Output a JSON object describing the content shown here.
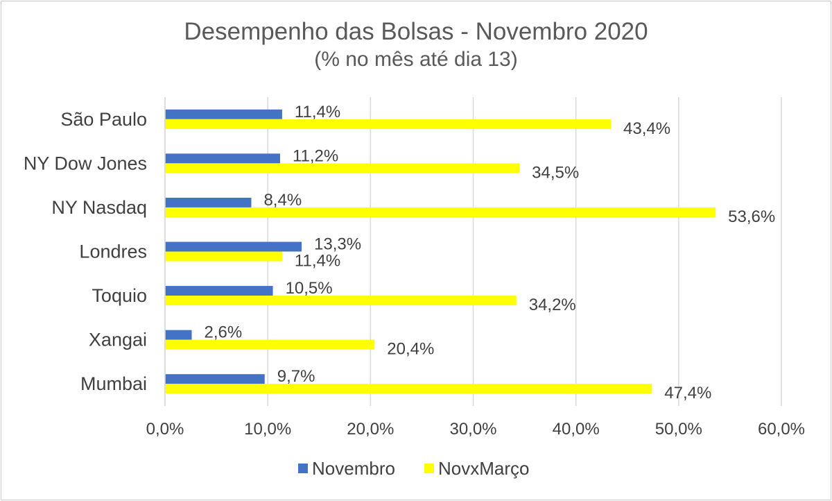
{
  "chart_data": {
    "type": "bar",
    "orientation": "horizontal",
    "title": "Desempenho das Bolsas - Novembro 2020",
    "subtitle": "(% no mês até dia 13)",
    "categories": [
      "São Paulo",
      "NY Dow Jones",
      "NY Nasdaq",
      "Londres",
      "Toquio",
      "Xangai",
      "Mumbai"
    ],
    "series": [
      {
        "name": "Novembro",
        "color": "#4472C4",
        "values": [
          11.4,
          11.2,
          8.4,
          13.3,
          10.5,
          2.6,
          9.7
        ],
        "labels": [
          "11,4%",
          "11,2%",
          "8,4%",
          "13,3%",
          "10,5%",
          "2,6%",
          "9,7%"
        ]
      },
      {
        "name": "NovxMarço",
        "color": "#FFFF00",
        "values": [
          43.4,
          34.5,
          53.6,
          11.4,
          34.2,
          20.4,
          47.4
        ],
        "labels": [
          "43,4%",
          "34,5%",
          "53,6%",
          "11,4%",
          "34,2%",
          "20,4%",
          "47,4%"
        ]
      }
    ],
    "xlim": [
      0,
      60
    ],
    "xticks": [
      0,
      10,
      20,
      30,
      40,
      50,
      60
    ],
    "xtick_labels": [
      "0,0%",
      "10,0%",
      "20,0%",
      "30,0%",
      "40,0%",
      "50,0%",
      "60,0%"
    ],
    "grid": true,
    "legend_position": "bottom"
  }
}
